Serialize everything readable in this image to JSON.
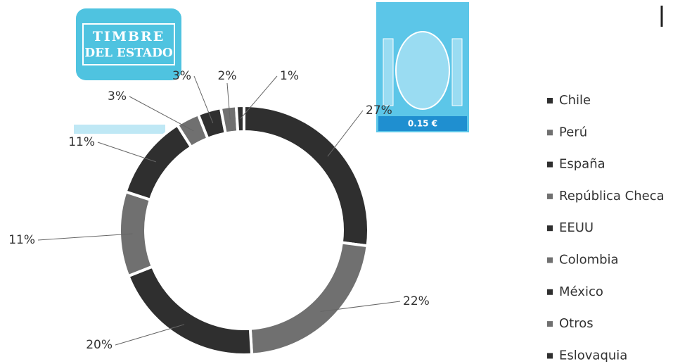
{
  "stamps": {
    "timbre": [
      "TIMBRE",
      "DEL ESTADO"
    ],
    "price": "0.15 €"
  },
  "chart_data": {
    "type": "donut",
    "categories": [
      "Chile",
      "Perú",
      "España",
      "República Checa",
      "EEUU",
      "Colombia",
      "México",
      "Otros",
      "Eslovaquia"
    ],
    "values": [
      27,
      22,
      20,
      11,
      11,
      3,
      3,
      2,
      1
    ],
    "value_labels": [
      "27%",
      "22%",
      "20%",
      "11%",
      "11%",
      "3%",
      "3%",
      "2%",
      "1%"
    ],
    "colors": [
      "#2f2f2f",
      "#707070",
      "#2f2f2f",
      "#707070",
      "#2f2f2f",
      "#707070",
      "#2f2f2f",
      "#707070",
      "#2f2f2f"
    ],
    "legend": "right"
  }
}
